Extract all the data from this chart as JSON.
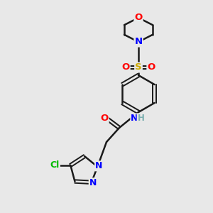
{
  "bg_color": "#e8e8e8",
  "bond_color": "#1a1a1a",
  "atom_colors": {
    "O": "#ff0000",
    "N": "#0000ff",
    "S": "#ccaa00",
    "Cl": "#00bb00",
    "C": "#1a1a1a",
    "H": "#7aafaf"
  },
  "figsize": [
    3.0,
    3.0
  ],
  "dpi": 100
}
